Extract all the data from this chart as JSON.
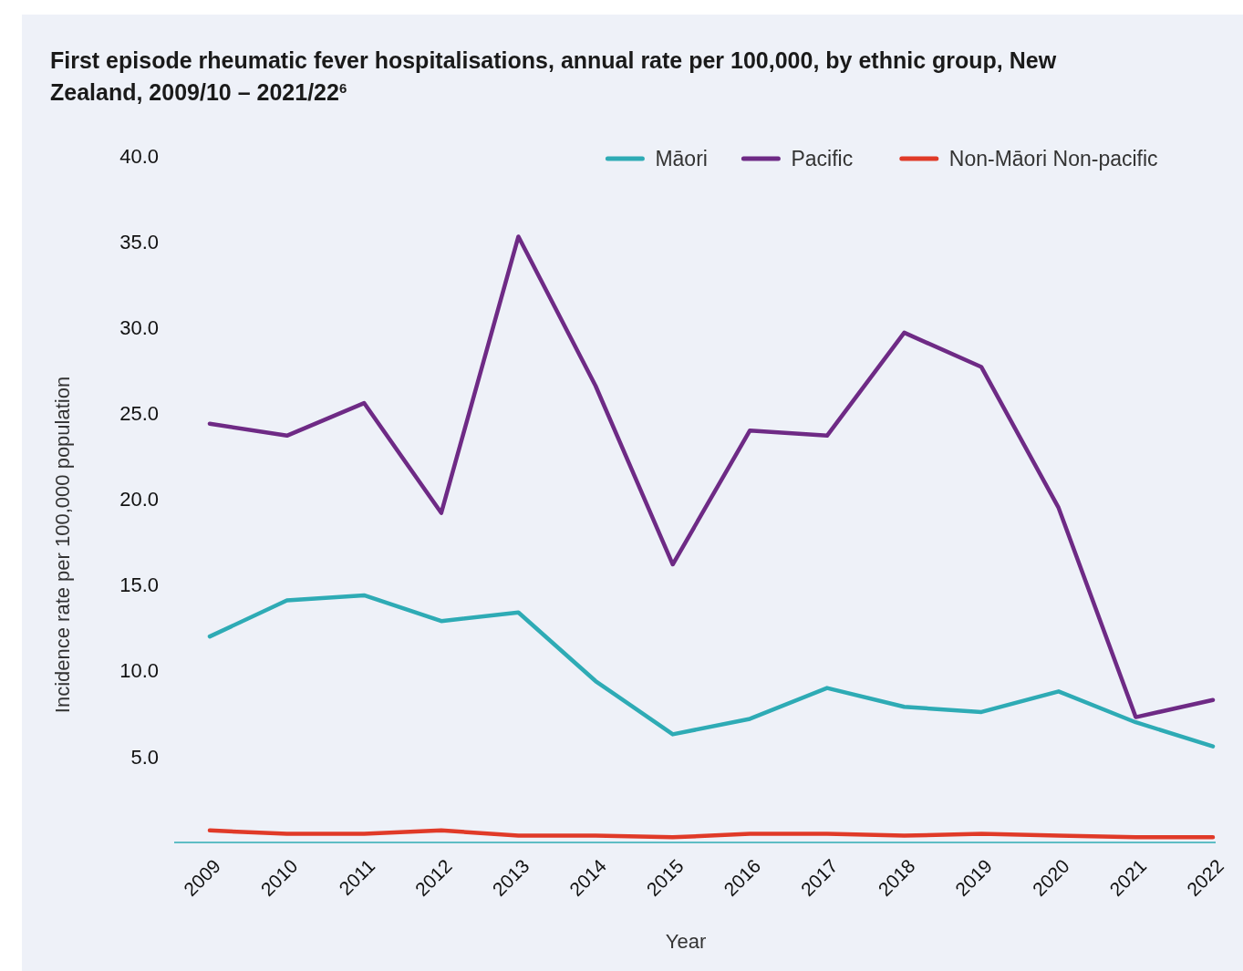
{
  "chart_data": {
    "type": "line",
    "title": "First episode rheumatic fever hospitalisations, annual rate per 100,000, by ethnic group, New Zealand, 2009/10 – 2021/22$^{6}$",
    "xlabel": "Year",
    "ylabel": "Incidence rate per 100,000 population",
    "categories": [
      "2009",
      "2010",
      "2011",
      "2012",
      "2013",
      "2014",
      "2015",
      "2016",
      "2017",
      "2018",
      "2019",
      "2020",
      "2021",
      "2022"
    ],
    "series": [
      {
        "name": "Māori",
        "color": "#2eabb5",
        "values": [
          12.0,
          14.1,
          14.4,
          12.9,
          13.4,
          9.4,
          6.3,
          7.2,
          9.0,
          7.9,
          7.6,
          8.8,
          7.0,
          5.6
        ]
      },
      {
        "name": "Pacific",
        "color": "#6e2a85",
        "values": [
          24.4,
          23.7,
          25.6,
          19.2,
          35.3,
          26.6,
          16.2,
          24.0,
          23.7,
          29.7,
          27.7,
          19.5,
          7.3,
          8.3
        ]
      },
      {
        "name": "Non-Māori Non-pacific",
        "color": "#e03a28",
        "values": [
          0.7,
          0.5,
          0.5,
          0.7,
          0.4,
          0.4,
          0.3,
          0.5,
          0.5,
          0.4,
          0.5,
          0.4,
          0.3,
          0.3
        ]
      }
    ],
    "ylim": [
      0,
      40
    ],
    "yticks": [
      {
        "value": 5,
        "label": "5.0"
      },
      {
        "value": 10,
        "label": "10.0"
      },
      {
        "value": 15,
        "label": "15.0"
      },
      {
        "value": 20,
        "label": "20.0"
      },
      {
        "value": 25,
        "label": "25.0"
      },
      {
        "value": 30,
        "label": "30.0"
      },
      {
        "value": 35,
        "label": "35.0"
      },
      {
        "value": 40,
        "label": "40.0"
      }
    ],
    "grid": false,
    "legend": "top right",
    "line_style": "solid",
    "marker": "none"
  }
}
